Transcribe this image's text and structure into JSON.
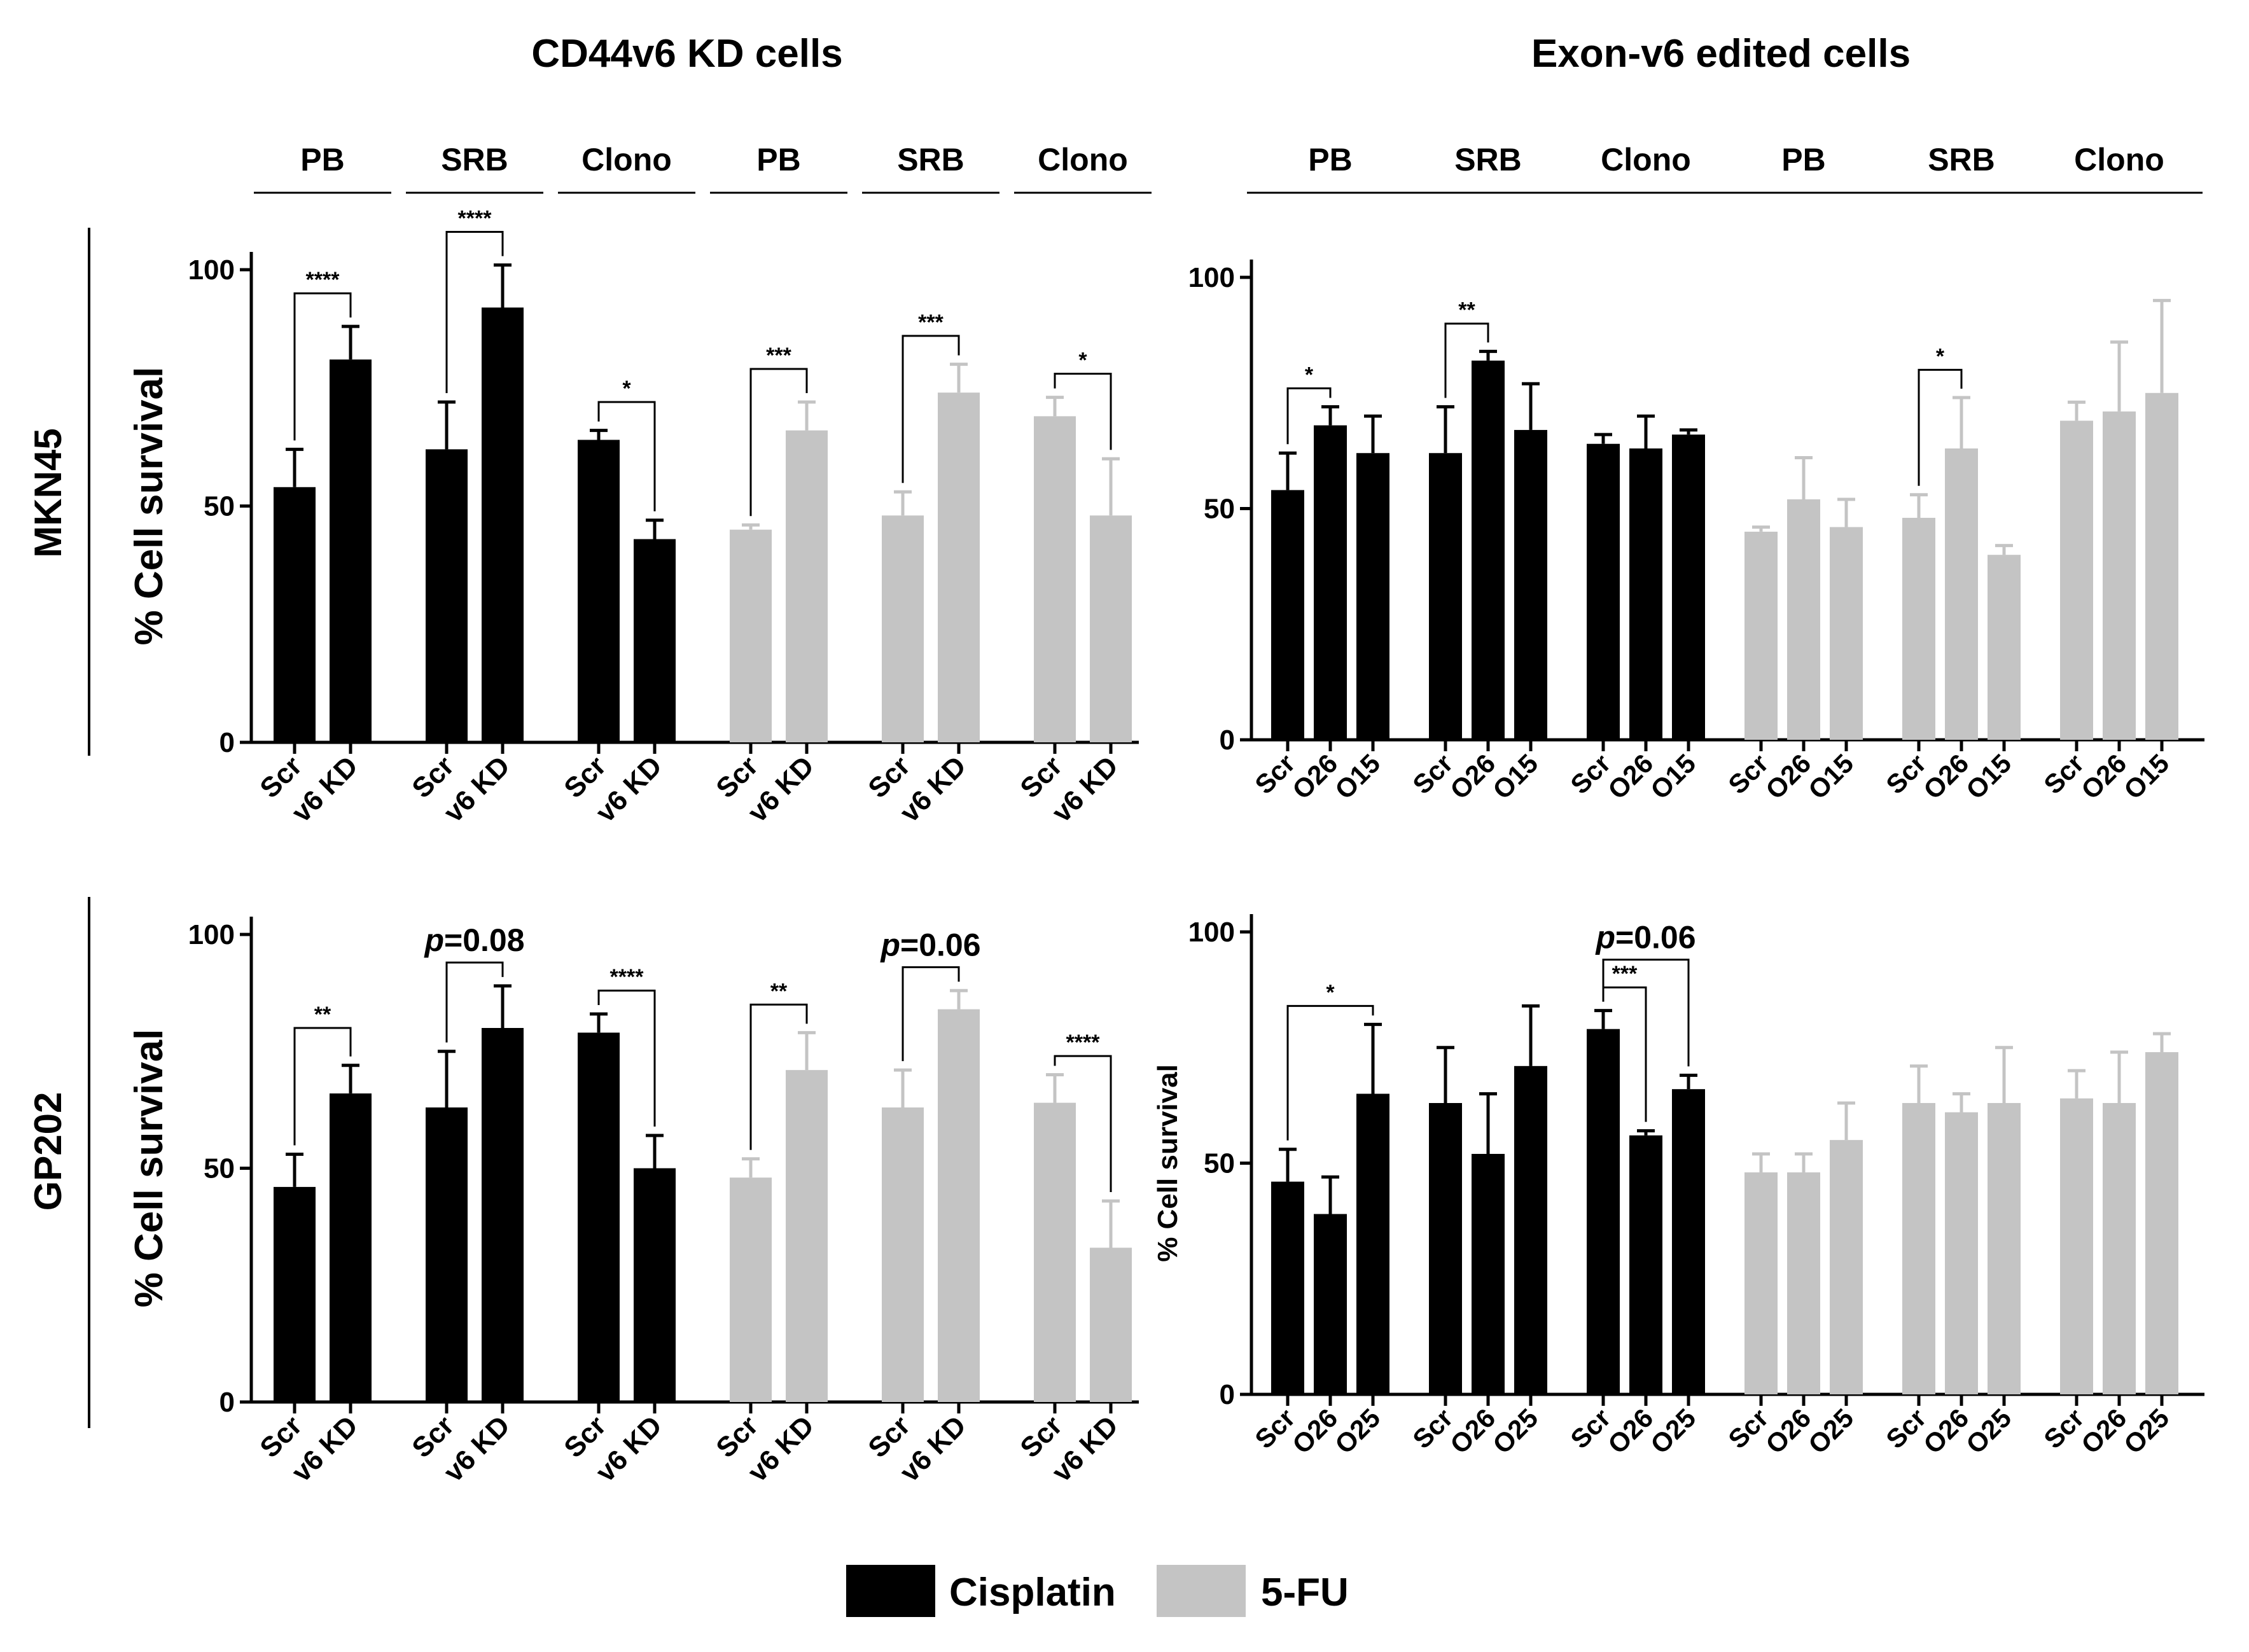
{
  "colors": {
    "cisplatin": "#000000",
    "fu": "#c4c4c4",
    "axis": "#000000"
  },
  "headers": {
    "left": "CD44v6 KD cells",
    "right": "Exon-v6 edited cells"
  },
  "rows": [
    "MKN45",
    "GP202"
  ],
  "legend": [
    {
      "label": "Cisplatin",
      "color": "#000000"
    },
    {
      "label": "5-FU",
      "color": "#c4c4c4"
    }
  ],
  "chart_data": [
    {
      "type": "bar",
      "id": "kd_mkn45",
      "row": "MKN45",
      "ylabel": "% Cell survival",
      "ylim": [
        0,
        100
      ],
      "yticks": [
        0,
        50,
        100
      ],
      "groups": [
        {
          "label": "PB",
          "drug": "cisplatin",
          "categories": [
            "Scr",
            "v6 KD"
          ],
          "values": [
            54,
            81
          ],
          "errors": [
            8,
            7
          ]
        },
        {
          "label": "SRB",
          "drug": "cisplatin",
          "categories": [
            "Scr",
            "v6 KD"
          ],
          "values": [
            62,
            92
          ],
          "errors": [
            10,
            9
          ]
        },
        {
          "label": "Clono",
          "drug": "cisplatin",
          "categories": [
            "Scr",
            "v6 KD"
          ],
          "values": [
            64,
            43
          ],
          "errors": [
            2,
            4
          ]
        },
        {
          "label": "PB",
          "drug": "fu",
          "categories": [
            "Scr",
            "v6 KD"
          ],
          "values": [
            45,
            66
          ],
          "errors": [
            1,
            6
          ]
        },
        {
          "label": "SRB",
          "drug": "fu",
          "categories": [
            "Scr",
            "v6 KD"
          ],
          "values": [
            48,
            74
          ],
          "errors": [
            5,
            6
          ]
        },
        {
          "label": "Clono",
          "drug": "fu",
          "categories": [
            "Scr",
            "v6 KD"
          ],
          "values": [
            69,
            48
          ],
          "errors": [
            4,
            12
          ]
        }
      ],
      "annotations": [
        {
          "group": 0,
          "from": 0,
          "to": 1,
          "text": "****",
          "y": 95
        },
        {
          "group": 1,
          "from": 0,
          "to": 1,
          "text": "****",
          "y": 108
        },
        {
          "group": 2,
          "from": 0,
          "to": 1,
          "text": "*",
          "y": 72
        },
        {
          "group": 3,
          "from": 0,
          "to": 1,
          "text": "***",
          "y": 79
        },
        {
          "group": 4,
          "from": 0,
          "to": 1,
          "text": "***",
          "y": 86
        },
        {
          "group": 5,
          "from": 0,
          "to": 1,
          "text": "*",
          "y": 78
        }
      ]
    },
    {
      "type": "bar",
      "id": "ed_mkn45",
      "row": "MKN45",
      "ylabel": "",
      "ylim": [
        0,
        100
      ],
      "yticks": [
        0,
        50,
        100
      ],
      "groups": [
        {
          "label": "PB",
          "drug": "cisplatin",
          "categories": [
            "Scr",
            "O26",
            "O15"
          ],
          "values": [
            54,
            68,
            62
          ],
          "errors": [
            8,
            4,
            8
          ]
        },
        {
          "label": "SRB",
          "drug": "cisplatin",
          "categories": [
            "Scr",
            "O26",
            "O15"
          ],
          "values": [
            62,
            82,
            67
          ],
          "errors": [
            10,
            2,
            10
          ]
        },
        {
          "label": "Clono",
          "drug": "cisplatin",
          "categories": [
            "Scr",
            "O26",
            "O15"
          ],
          "values": [
            64,
            63,
            66
          ],
          "errors": [
            2,
            7,
            1
          ]
        },
        {
          "label": "PB",
          "drug": "fu",
          "categories": [
            "Scr",
            "O26",
            "O15"
          ],
          "values": [
            45,
            52,
            46
          ],
          "errors": [
            1,
            9,
            6
          ]
        },
        {
          "label": "SRB",
          "drug": "fu",
          "categories": [
            "Scr",
            "O26",
            "O15"
          ],
          "values": [
            48,
            63,
            40
          ],
          "errors": [
            5,
            11,
            2
          ]
        },
        {
          "label": "Clono",
          "drug": "fu",
          "categories": [
            "Scr",
            "O26",
            "O15"
          ],
          "values": [
            69,
            71,
            75
          ],
          "errors": [
            4,
            15,
            20
          ]
        }
      ],
      "annotations": [
        {
          "group": 0,
          "from": 0,
          "to": 1,
          "text": "*",
          "y": 76
        },
        {
          "group": 1,
          "from": 0,
          "to": 1,
          "text": "**",
          "y": 90
        },
        {
          "group": 4,
          "from": 0,
          "to": 1,
          "text": "*",
          "y": 80
        }
      ]
    },
    {
      "type": "bar",
      "id": "kd_gp202",
      "row": "GP202",
      "ylabel": "% Cell survival",
      "ylim": [
        0,
        100
      ],
      "yticks": [
        0,
        50,
        100
      ],
      "groups": [
        {
          "label": "",
          "drug": "cisplatin",
          "categories": [
            "Scr",
            "v6 KD"
          ],
          "values": [
            46,
            66
          ],
          "errors": [
            7,
            6
          ]
        },
        {
          "label": "",
          "drug": "cisplatin",
          "categories": [
            "Scr",
            "v6 KD"
          ],
          "values": [
            63,
            80
          ],
          "errors": [
            12,
            9
          ]
        },
        {
          "label": "",
          "drug": "cisplatin",
          "categories": [
            "Scr",
            "v6 KD"
          ],
          "values": [
            79,
            50
          ],
          "errors": [
            4,
            7
          ]
        },
        {
          "label": "",
          "drug": "fu",
          "categories": [
            "Scr",
            "v6 KD"
          ],
          "values": [
            48,
            71
          ],
          "errors": [
            4,
            8
          ]
        },
        {
          "label": "",
          "drug": "fu",
          "categories": [
            "Scr",
            "v6 KD"
          ],
          "values": [
            63,
            84
          ],
          "errors": [
            8,
            4
          ]
        },
        {
          "label": "",
          "drug": "fu",
          "categories": [
            "Scr",
            "v6 KD"
          ],
          "values": [
            64,
            33
          ],
          "errors": [
            6,
            10
          ]
        }
      ],
      "annotations": [
        {
          "group": 0,
          "from": 0,
          "to": 1,
          "text": "**",
          "y": 80
        },
        {
          "group": 1,
          "from": 0,
          "to": 1,
          "text": "p=0.08",
          "y": 94,
          "style": "p"
        },
        {
          "group": 2,
          "from": 0,
          "to": 1,
          "text": "****",
          "y": 88
        },
        {
          "group": 3,
          "from": 0,
          "to": 1,
          "text": "**",
          "y": 85
        },
        {
          "group": 4,
          "from": 0,
          "to": 1,
          "text": "p=0.06",
          "y": 93,
          "style": "p"
        },
        {
          "group": 5,
          "from": 0,
          "to": 1,
          "text": "****",
          "y": 74
        }
      ]
    },
    {
      "type": "bar",
      "id": "ed_gp202",
      "row": "GP202",
      "ylabel": "% Cell survival",
      "ylim": [
        0,
        100
      ],
      "yticks": [
        0,
        50,
        100
      ],
      "groups": [
        {
          "label": "",
          "drug": "cisplatin",
          "categories": [
            "Scr",
            "O26",
            "O25"
          ],
          "values": [
            46,
            39,
            65
          ],
          "errors": [
            7,
            8,
            15
          ]
        },
        {
          "label": "",
          "drug": "cisplatin",
          "categories": [
            "Scr",
            "O26",
            "O25"
          ],
          "values": [
            63,
            52,
            71
          ],
          "errors": [
            12,
            13,
            13
          ]
        },
        {
          "label": "",
          "drug": "cisplatin",
          "categories": [
            "Scr",
            "O26",
            "O25"
          ],
          "values": [
            79,
            56,
            66
          ],
          "errors": [
            4,
            1,
            3
          ]
        },
        {
          "label": "",
          "drug": "fu",
          "categories": [
            "Scr",
            "O26",
            "O25"
          ],
          "values": [
            48,
            48,
            55
          ],
          "errors": [
            4,
            4,
            8
          ]
        },
        {
          "label": "",
          "drug": "fu",
          "categories": [
            "Scr",
            "O26",
            "O25"
          ],
          "values": [
            63,
            61,
            63
          ],
          "errors": [
            8,
            4,
            12
          ]
        },
        {
          "label": "",
          "drug": "fu",
          "categories": [
            "Scr",
            "O26",
            "O25"
          ],
          "values": [
            64,
            63,
            74
          ],
          "errors": [
            6,
            11,
            4
          ]
        }
      ],
      "annotations": [
        {
          "group": 0,
          "from": 0,
          "to": 2,
          "text": "*",
          "y": 84
        },
        {
          "group": 2,
          "from": 0,
          "to": 1,
          "text": "***",
          "y": 88
        },
        {
          "group": 2,
          "from": 0,
          "to": 2,
          "text": "p=0.06",
          "y": 94,
          "style": "p"
        }
      ]
    }
  ]
}
